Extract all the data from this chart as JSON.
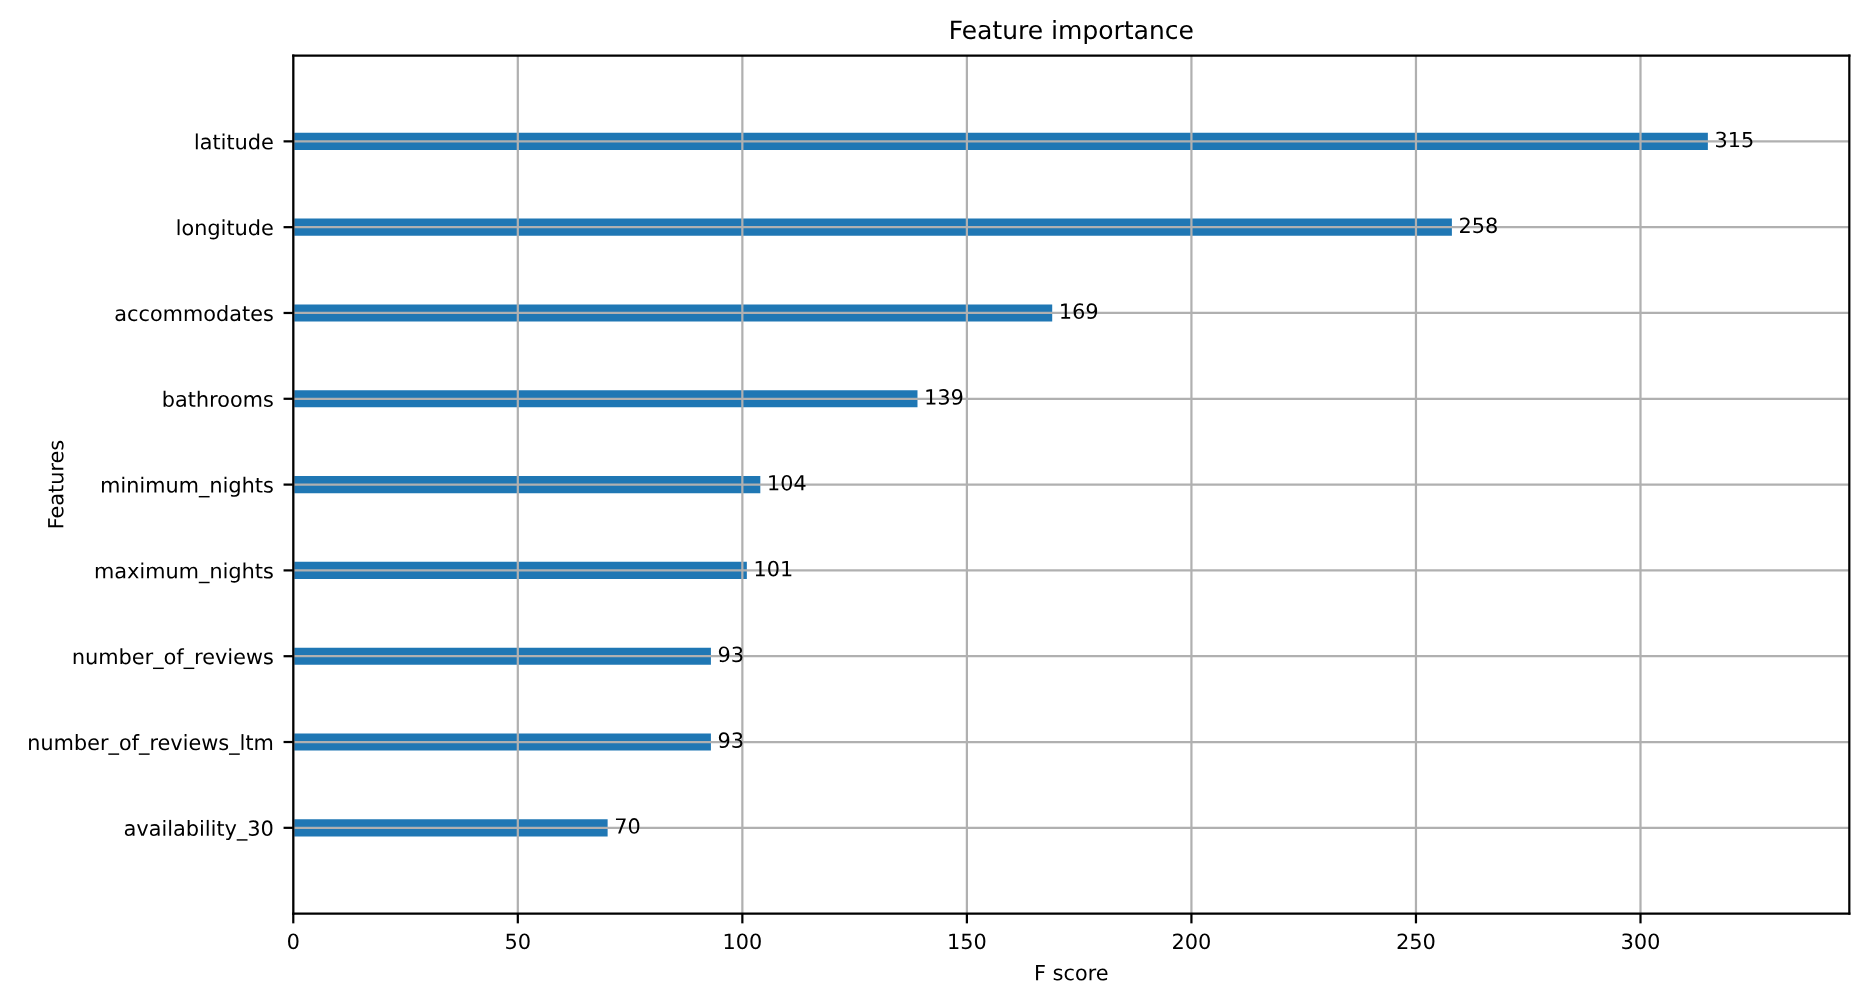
{
  "chart_data": {
    "type": "bar",
    "orientation": "horizontal",
    "title": "Feature importance",
    "xlabel": "F score",
    "ylabel": "Features",
    "categories": [
      "latitude",
      "longitude",
      "accommodates",
      "bathrooms",
      "minimum_nights",
      "maximum_nights",
      "number_of_reviews",
      "number_of_reviews_ltm",
      "availability_30"
    ],
    "values": [
      315,
      258,
      169,
      139,
      104,
      101,
      93,
      93,
      70
    ],
    "color": "#1f77b4",
    "xlim": [
      0,
      346.5
    ],
    "xticks": [
      0,
      50,
      100,
      150,
      200,
      250,
      300
    ],
    "grid": true,
    "data_labels": true
  }
}
